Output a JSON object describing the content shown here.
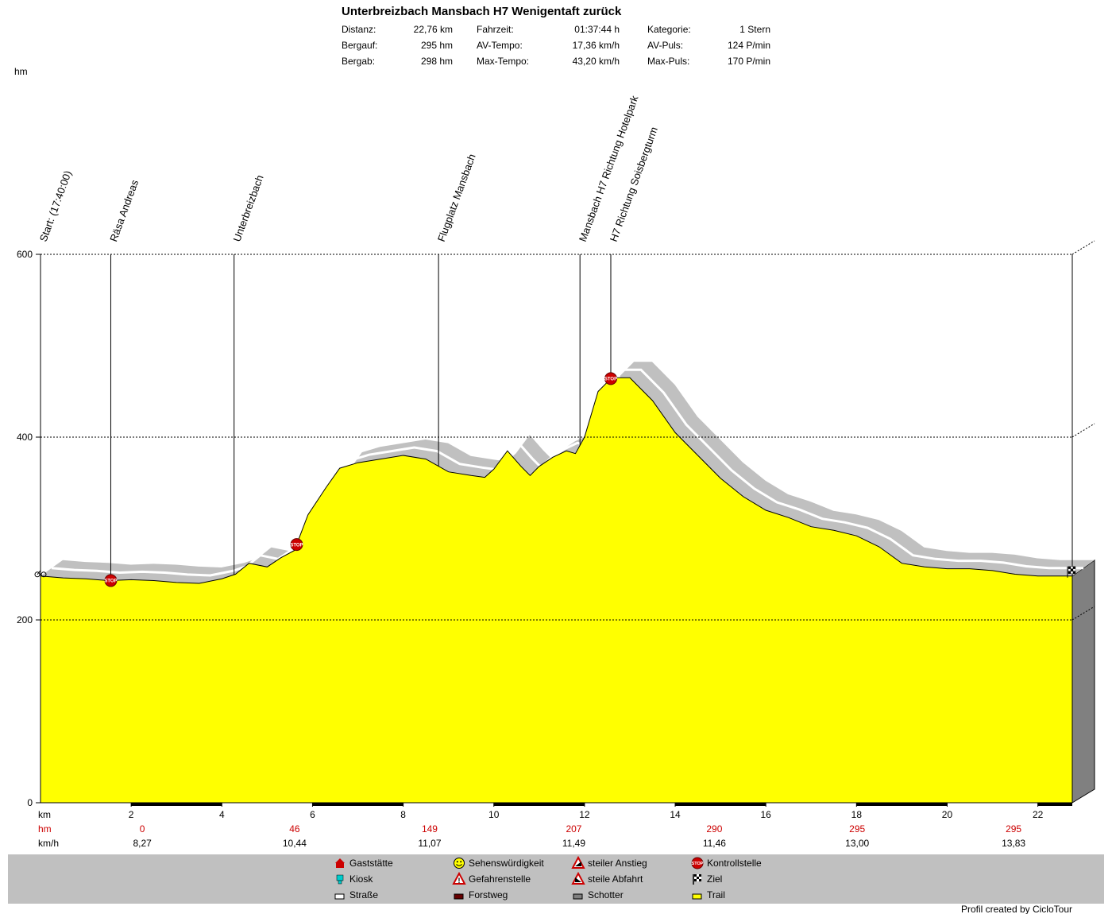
{
  "title": "Unterbreizbach Mansbach H7 Wenigentaft zurück",
  "stats": [
    {
      "label": "Distanz:",
      "value": "22,76 km"
    },
    {
      "label": "Bergauf:",
      "value": "295 hm"
    },
    {
      "label": "Bergab:",
      "value": "298 hm"
    },
    {
      "label": "Fahrzeit:",
      "value": "01:37:44 h"
    },
    {
      "label": "AV-Tempo:",
      "value": "17,36 km/h"
    },
    {
      "label": "Max-Tempo:",
      "value": "43,20 km/h"
    },
    {
      "label": "Kategorie:",
      "value": "1 Stern"
    },
    {
      "label": "AV-Puls:",
      "value": "124 P/min"
    },
    {
      "label": "Max-Puls:",
      "value": "170 P/min"
    }
  ],
  "chart_data": {
    "type": "area",
    "ylabel": "hm",
    "xlabel": "km",
    "ylim": [
      0,
      600
    ],
    "xlim": [
      0,
      22.76
    ],
    "yticks": [
      0,
      200,
      400,
      600
    ],
    "xticks": [
      2,
      4,
      6,
      8,
      10,
      12,
      14,
      16,
      18,
      20,
      22
    ],
    "grid": true,
    "x": [
      0,
      0.5,
      1,
      1.5,
      2,
      2.5,
      3,
      3.5,
      4,
      4.3,
      4.6,
      5,
      5.3,
      5.6,
      5.9,
      6.3,
      6.6,
      7,
      7.5,
      8,
      8.5,
      9,
      9.5,
      9.8,
      10,
      10.3,
      10.6,
      10.8,
      11,
      11.3,
      11.6,
      11.8,
      12,
      12.3,
      12.6,
      13,
      13.5,
      14,
      14.5,
      15,
      15.5,
      16,
      16.5,
      17,
      17.5,
      18,
      18.5,
      19,
      19.5,
      20,
      20.5,
      21,
      21.5,
      22,
      22.76
    ],
    "values": [
      248,
      246,
      245,
      243,
      244,
      243,
      241,
      240,
      245,
      250,
      262,
      258,
      268,
      276,
      315,
      345,
      366,
      372,
      376,
      380,
      376,
      362,
      358,
      356,
      365,
      385,
      368,
      358,
      368,
      378,
      385,
      382,
      400,
      450,
      465,
      465,
      440,
      405,
      380,
      355,
      335,
      320,
      312,
      302,
      298,
      292,
      280,
      262,
      258,
      256,
      256,
      254,
      250,
      248,
      248
    ],
    "waypoints": [
      {
        "km": 0,
        "label": "Start: (17:40:00)"
      },
      {
        "km": 1.55,
        "label": "Räsa Andreas"
      },
      {
        "km": 4.27,
        "label": "Unterbreizbach"
      },
      {
        "km": 8.78,
        "label": "Flugplatz Mansbach"
      },
      {
        "km": 11.9,
        "label": "Mansbach H7 Richtung Hotelpark"
      },
      {
        "km": 12.58,
        "label": "H7 Richtung Soisbergturm"
      }
    ],
    "markers": [
      {
        "km": 1.55,
        "type": "Kontrollstelle",
        "icon": "stop-icon"
      },
      {
        "km": 5.65,
        "type": "Kontrollstelle",
        "icon": "stop-icon"
      },
      {
        "km": 12.58,
        "type": "Kontrollstelle",
        "icon": "stop-icon"
      }
    ],
    "segments": {
      "label_hm": "hm",
      "label_kmh": "km/h",
      "hm": [
        "0",
        "46",
        "149",
        "207",
        "290",
        "295",
        "295"
      ],
      "kmh": [
        "8,27",
        "10,44",
        "11,07",
        "11,49",
        "11,46",
        "13,00",
        "13,83"
      ]
    },
    "colors": {
      "fill": "#ffff00",
      "shadow": "#c0c0c0",
      "side": "#808080",
      "legend_bg": "#c0c0c0",
      "red_text": "#cc0000"
    }
  },
  "legend": [
    {
      "label": "Gaststätte",
      "icon": "house-icon",
      "color": "#cc0000"
    },
    {
      "label": "Kiosk",
      "icon": "kiosk-icon",
      "color": "#00cccc"
    },
    {
      "label": "Straße",
      "icon": "road-swatch-icon",
      "color": "#ffffff"
    },
    {
      "label": "Sehenswürdigkeit",
      "icon": "smiley-icon",
      "color": "#ffff00"
    },
    {
      "label": "Gefahrenstelle",
      "icon": "warning-icon",
      "color": "#cc0000"
    },
    {
      "label": "Forstweg",
      "icon": "forest-road-swatch-icon",
      "color": "#660000"
    },
    {
      "label": "steiler Anstieg",
      "icon": "steep-climb-icon",
      "color": "#cc0000"
    },
    {
      "label": "steile Abfahrt",
      "icon": "steep-descent-icon",
      "color": "#cc0000"
    },
    {
      "label": "Schotter",
      "icon": "gravel-swatch-icon",
      "color": "#808080"
    },
    {
      "label": "Kontrollstelle",
      "icon": "stop-icon",
      "color": "#cc0000"
    },
    {
      "label": "Ziel",
      "icon": "checkered-flag-icon",
      "color": "#000000"
    },
    {
      "label": "Trail",
      "icon": "trail-swatch-icon",
      "color": "#ffff00"
    }
  ],
  "credit": "Profil created by CicloTour"
}
